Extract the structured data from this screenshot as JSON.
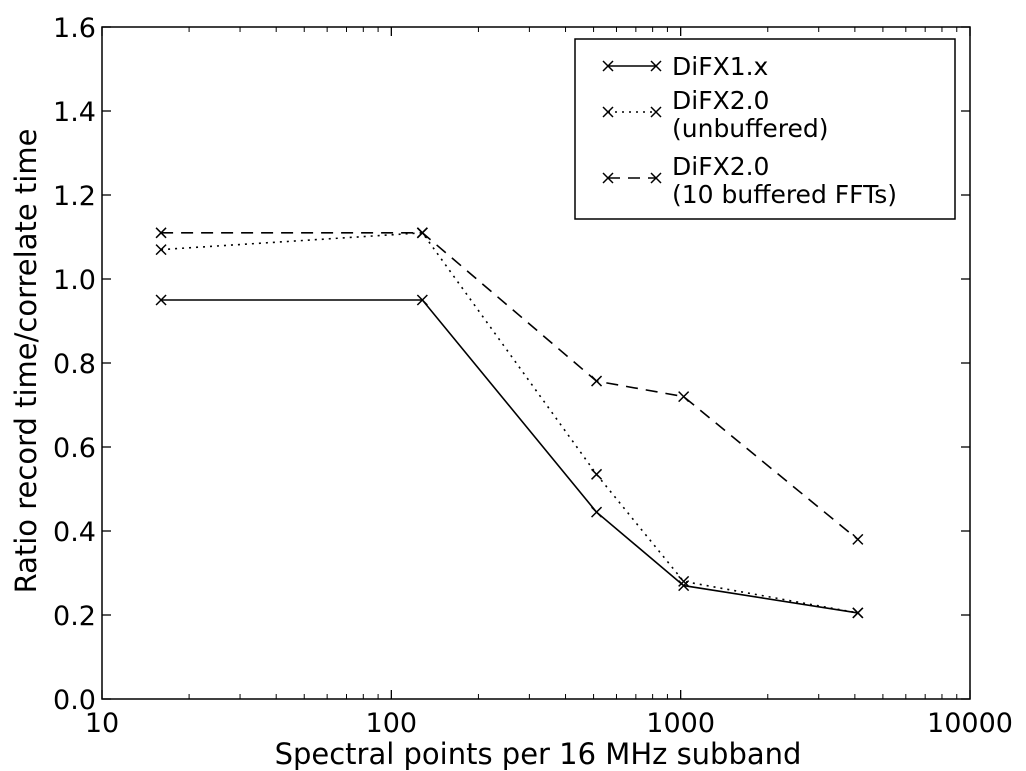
{
  "chart_data": {
    "type": "line",
    "title": "",
    "xlabel": "Spectral points per 16 MHz subband",
    "ylabel": "Ratio record time/correlate time",
    "x_scale": "log",
    "xlim": [
      10,
      10000
    ],
    "ylim": [
      0.0,
      1.6
    ],
    "x_ticks": [
      10,
      100,
      1000,
      10000
    ],
    "x_tick_labels": [
      "10",
      "100",
      "1000",
      "10000"
    ],
    "y_ticks": [
      0.0,
      0.2,
      0.4,
      0.6,
      0.8,
      1.0,
      1.2,
      1.4,
      1.6
    ],
    "y_tick_labels": [
      "0.0",
      "0.2",
      "0.4",
      "0.6",
      "0.8",
      "1.0",
      "1.2",
      "1.4",
      "1.6"
    ],
    "grid": false,
    "legend_position": "top-right",
    "x": [
      16,
      128,
      512,
      1024,
      4096
    ],
    "series": [
      {
        "name": "DiFX1.x",
        "name_lines": [
          "DiFX1.x"
        ],
        "style": "solid",
        "marker": "x",
        "color": "#000000",
        "values": [
          0.95,
          0.95,
          0.445,
          0.27,
          0.205
        ]
      },
      {
        "name": "DiFX2.0 (unbuffered)",
        "name_lines": [
          "DiFX2.0",
          "(unbuffered)"
        ],
        "style": "dotted",
        "marker": "x",
        "color": "#000000",
        "values": [
          1.07,
          1.11,
          0.535,
          0.28,
          0.205
        ]
      },
      {
        "name": "DiFX2.0 (10 buffered FFTs)",
        "name_lines": [
          "DiFX2.0",
          "(10 buffered FFTs)"
        ],
        "style": "dashed",
        "marker": "x",
        "color": "#000000",
        "values": [
          1.11,
          1.11,
          0.757,
          0.72,
          0.38
        ]
      }
    ]
  }
}
